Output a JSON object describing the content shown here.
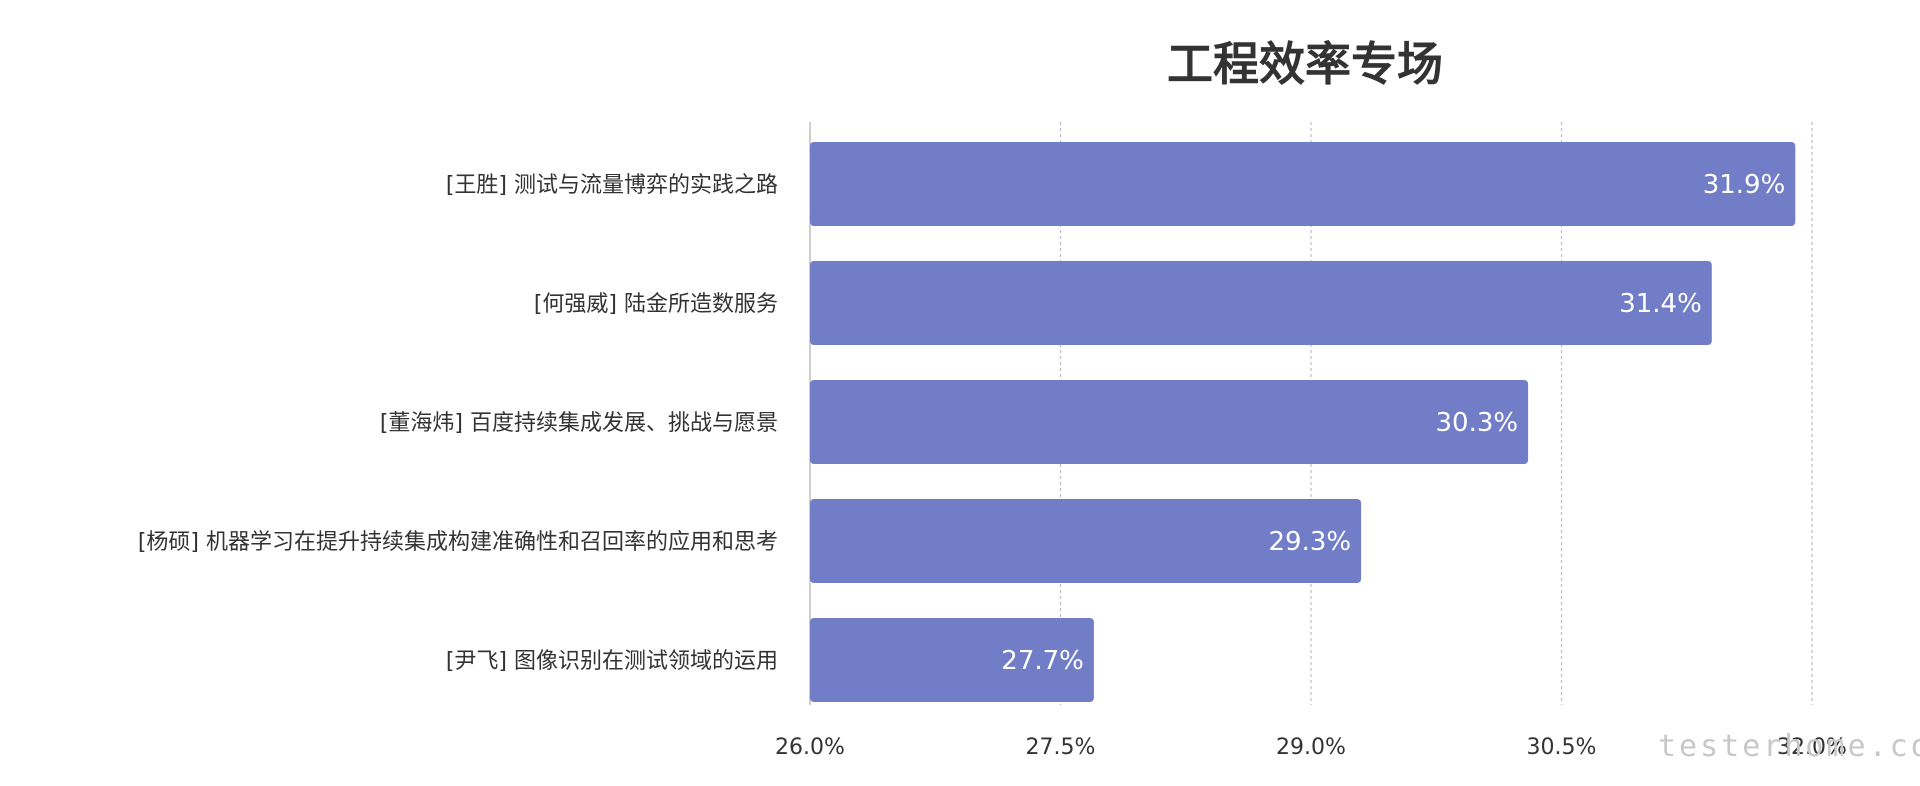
{
  "chart_data": {
    "type": "bar",
    "orientation": "horizontal",
    "title": "工程效率专场",
    "categories": [
      "[王胜] 测试与流量博弈的实践之路",
      "[何强威] 陆金所造数服务",
      "[董海炜] 百度持续集成发展、挑战与愿景",
      "[杨硕] 机器学习在提升持续集成构建准确性和召回率的应用和思考",
      "[尹飞] 图像识别在测试领域的运用"
    ],
    "values": [
      31.9,
      31.4,
      30.3,
      29.3,
      27.7
    ],
    "value_labels": [
      "31.9%",
      "31.4%",
      "30.3%",
      "29.3%",
      "27.7%"
    ],
    "xlim": [
      26.0,
      32.0
    ],
    "xticks": [
      "26.0%",
      "27.5%",
      "29.0%",
      "30.5%",
      "32.0%"
    ],
    "xtick_values": [
      26.0,
      27.5,
      29.0,
      30.5,
      32.0
    ],
    "grid": "vertical dotted",
    "bar_color": "#717dc6",
    "xlabel": "",
    "ylabel": ""
  },
  "watermark": "testerhome.com"
}
